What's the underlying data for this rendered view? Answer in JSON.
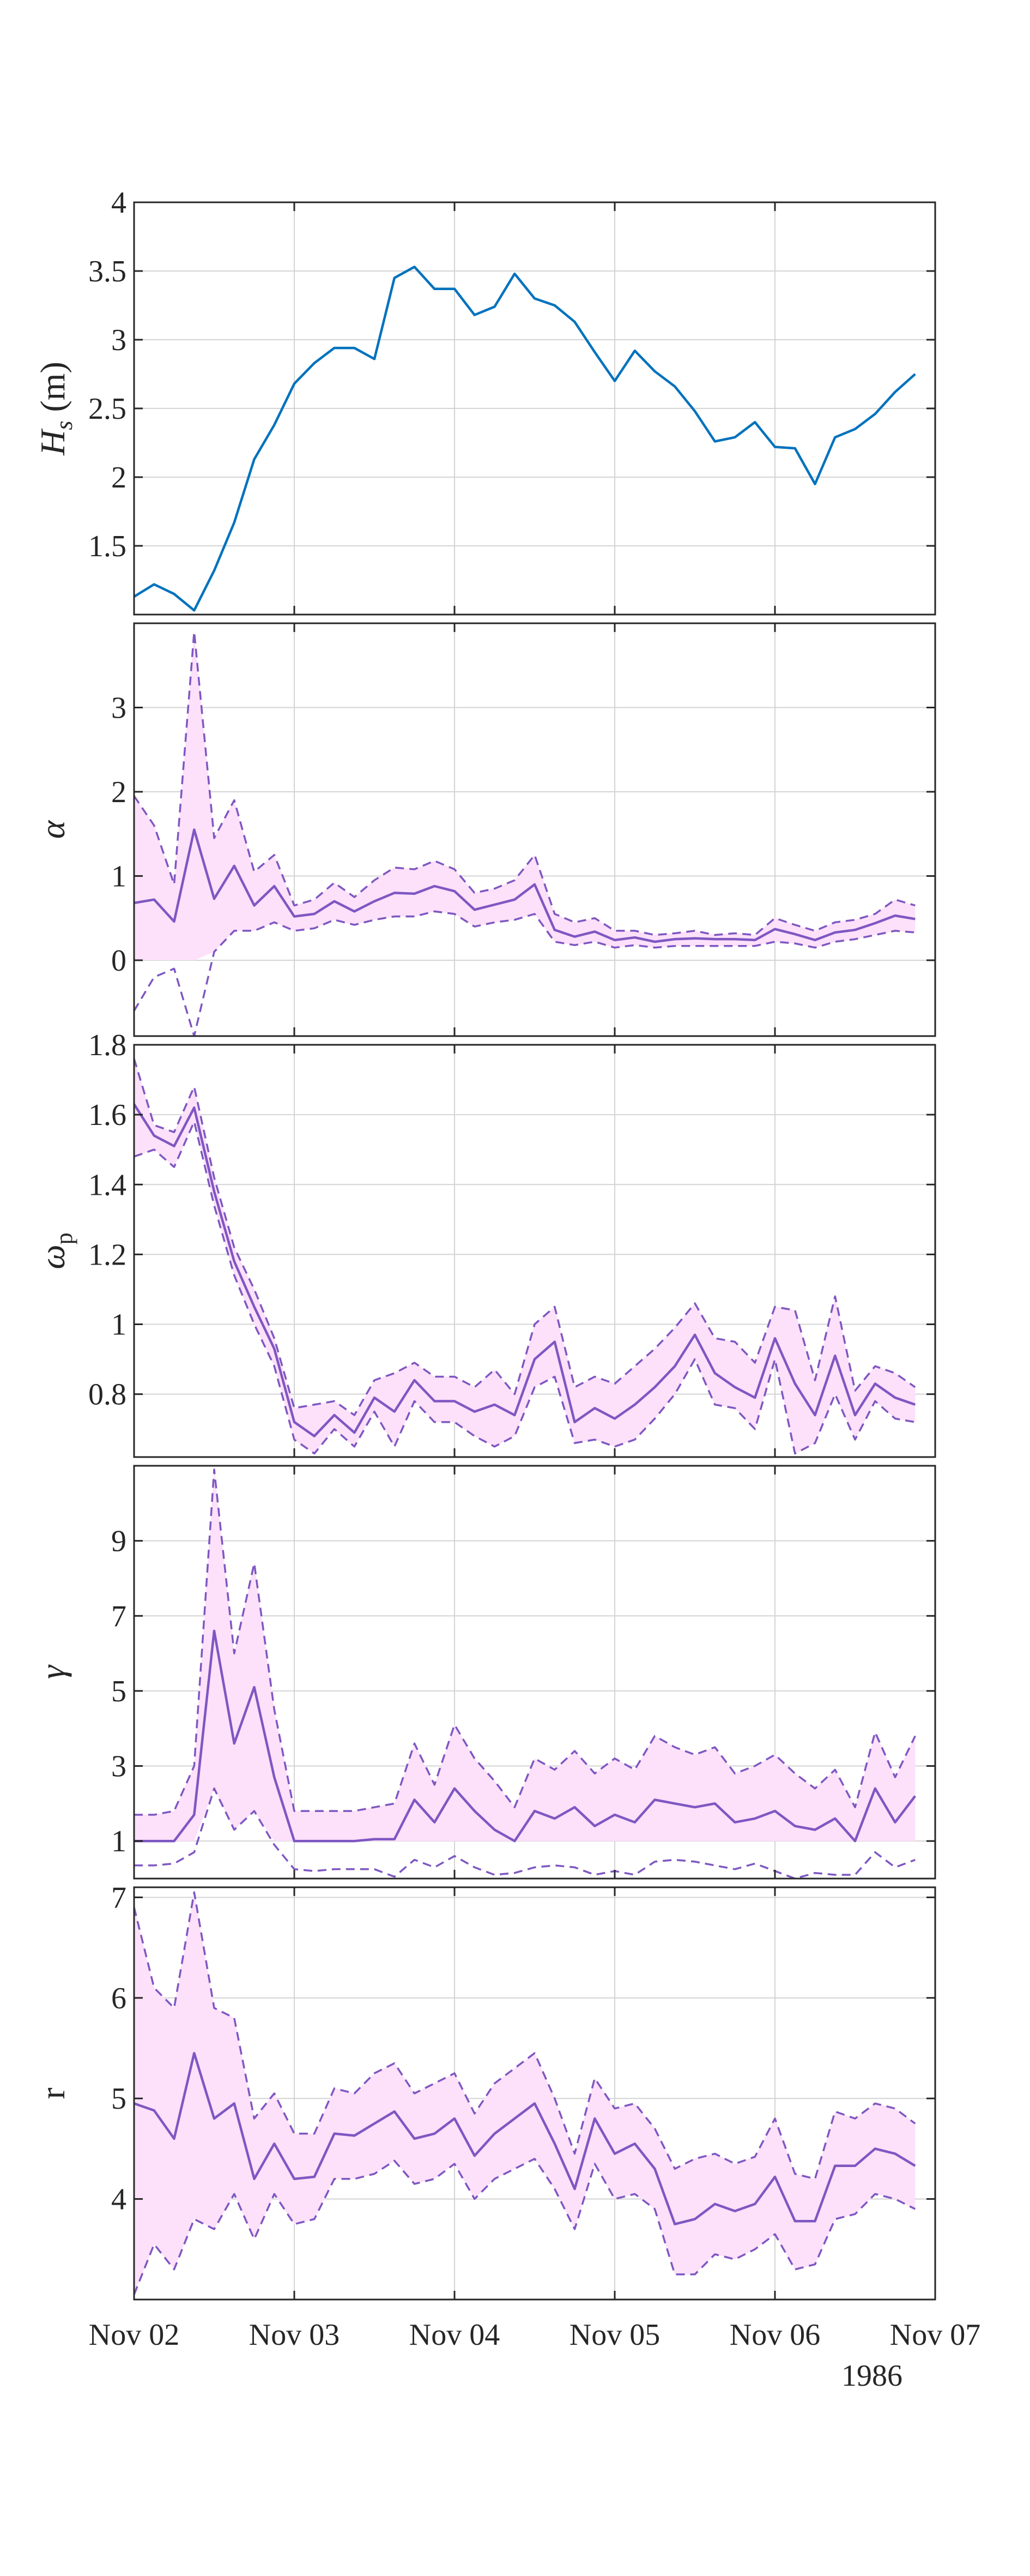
{
  "figure": {
    "year_label": "1986",
    "x_tick_labels": [
      "Nov 02",
      "Nov 03",
      "Nov 04",
      "Nov 05",
      "Nov 06",
      "Nov 07"
    ],
    "colors": {
      "hs_line": "#0072bd",
      "param_line": "#7e57c2",
      "band_fill": "#fde0fa",
      "axis": "#262626",
      "grid": "#d4d4d4"
    }
  },
  "chart_data": [
    {
      "type": "line",
      "id": "hs",
      "ylabel_main": "H",
      "ylabel_sub": "s",
      "ylabel_unit": " (m)",
      "x_unit": "days since Nov 02",
      "xlim": [
        0,
        5
      ],
      "ylim": [
        1.0,
        4.0
      ],
      "yticks": [
        1.5,
        2,
        2.5,
        3,
        3.5,
        4
      ],
      "ytick_labels": [
        "1.5",
        "2",
        "2.5",
        "3",
        "3.5",
        "4"
      ],
      "grid": true,
      "x": [
        0.0,
        0.125,
        0.25,
        0.375,
        0.5,
        0.625,
        0.75,
        0.875,
        1.0,
        1.125,
        1.25,
        1.375,
        1.5,
        1.625,
        1.75,
        1.875,
        2.0,
        2.125,
        2.25,
        2.375,
        2.5,
        2.625,
        2.75,
        2.875,
        3.0,
        3.125,
        3.25,
        3.375,
        3.5,
        3.625,
        3.75,
        3.875,
        4.0,
        4.125,
        4.25,
        4.375,
        4.5,
        4.625,
        4.75,
        4.875
      ],
      "series": [
        {
          "values": [
            1.13,
            1.22,
            1.15,
            1.03,
            1.32,
            1.67,
            2.13,
            2.38,
            2.68,
            2.83,
            2.94,
            2.94,
            2.86,
            3.45,
            3.53,
            3.37,
            3.37,
            3.18,
            3.24,
            3.48,
            3.3,
            3.25,
            3.13,
            2.91,
            2.7,
            2.92,
            2.77,
            2.66,
            2.48,
            2.26,
            2.29,
            2.4,
            2.22,
            2.21,
            1.95,
            2.29,
            2.35,
            2.46,
            2.62,
            2.75
          ]
        }
      ]
    },
    {
      "type": "area",
      "id": "alpha",
      "ylabel": "α",
      "x_unit": "days since Nov 02",
      "xlim": [
        0,
        5
      ],
      "ylim": [
        -0.9,
        4.0
      ],
      "band_floor": 0,
      "yticks": [
        0,
        1,
        2,
        3
      ],
      "ytick_labels": [
        "0",
        "1",
        "2",
        "3"
      ],
      "grid": true,
      "x": [
        0.0,
        0.125,
        0.25,
        0.375,
        0.5,
        0.625,
        0.75,
        0.875,
        1.0,
        1.125,
        1.25,
        1.375,
        1.5,
        1.625,
        1.75,
        1.875,
        2.0,
        2.125,
        2.25,
        2.375,
        2.5,
        2.625,
        2.75,
        2.875,
        3.0,
        3.125,
        3.25,
        3.375,
        3.5,
        3.625,
        3.75,
        3.875,
        4.0,
        4.125,
        4.25,
        4.375,
        4.5,
        4.625,
        4.75,
        4.875
      ],
      "series": [
        {
          "name": "estimate",
          "values": [
            0.68,
            0.72,
            0.46,
            1.55,
            0.73,
            1.12,
            0.65,
            0.88,
            0.52,
            0.55,
            0.7,
            0.58,
            0.7,
            0.8,
            0.79,
            0.88,
            0.82,
            0.6,
            0.66,
            0.72,
            0.9,
            0.36,
            0.28,
            0.34,
            0.24,
            0.27,
            0.22,
            0.25,
            0.26,
            0.25,
            0.25,
            0.24,
            0.37,
            0.31,
            0.24,
            0.33,
            0.36,
            0.44,
            0.53,
            0.49
          ]
        },
        {
          "name": "upper",
          "values": [
            1.95,
            1.6,
            0.9,
            3.9,
            1.45,
            1.9,
            1.05,
            1.25,
            0.65,
            0.72,
            0.92,
            0.75,
            0.95,
            1.1,
            1.08,
            1.18,
            1.08,
            0.8,
            0.85,
            0.95,
            1.25,
            0.55,
            0.45,
            0.5,
            0.35,
            0.35,
            0.3,
            0.32,
            0.35,
            0.3,
            0.32,
            0.3,
            0.5,
            0.42,
            0.35,
            0.45,
            0.48,
            0.55,
            0.72,
            0.65
          ]
        },
        {
          "name": "lower",
          "values": [
            -0.6,
            -0.2,
            -0.1,
            -0.9,
            0.1,
            0.35,
            0.35,
            0.45,
            0.35,
            0.38,
            0.48,
            0.42,
            0.48,
            0.52,
            0.52,
            0.58,
            0.55,
            0.4,
            0.45,
            0.48,
            0.55,
            0.22,
            0.18,
            0.22,
            0.15,
            0.18,
            0.15,
            0.17,
            0.17,
            0.17,
            0.17,
            0.17,
            0.22,
            0.2,
            0.15,
            0.22,
            0.25,
            0.3,
            0.35,
            0.33
          ]
        }
      ]
    },
    {
      "type": "area",
      "id": "omega",
      "ylabel_main": "ω",
      "ylabel_sub": "p",
      "x_unit": "days since Nov 02",
      "xlim": [
        0,
        5
      ],
      "ylim": [
        0.62,
        1.8
      ],
      "yticks": [
        0.8,
        1,
        1.2,
        1.4,
        1.6,
        1.8
      ],
      "ytick_labels": [
        "0.8",
        "1",
        "1.2",
        "1.4",
        "1.6",
        "1.8"
      ],
      "grid": true,
      "x": [
        0.0,
        0.125,
        0.25,
        0.375,
        0.5,
        0.625,
        0.75,
        0.875,
        1.0,
        1.125,
        1.25,
        1.375,
        1.5,
        1.625,
        1.75,
        1.875,
        2.0,
        2.125,
        2.25,
        2.375,
        2.5,
        2.625,
        2.75,
        2.875,
        3.0,
        3.125,
        3.25,
        3.375,
        3.5,
        3.625,
        3.75,
        3.875,
        4.0,
        4.125,
        4.25,
        4.375,
        4.5,
        4.625,
        4.75,
        4.875
      ],
      "series": [
        {
          "name": "estimate",
          "values": [
            1.63,
            1.54,
            1.51,
            1.62,
            1.38,
            1.18,
            1.05,
            0.93,
            0.72,
            0.68,
            0.74,
            0.69,
            0.79,
            0.75,
            0.84,
            0.78,
            0.78,
            0.75,
            0.77,
            0.74,
            0.9,
            0.95,
            0.72,
            0.76,
            0.73,
            0.77,
            0.82,
            0.88,
            0.97,
            0.86,
            0.82,
            0.79,
            0.96,
            0.83,
            0.74,
            0.91,
            0.74,
            0.83,
            0.79,
            0.77
          ]
        },
        {
          "name": "upper",
          "values": [
            1.76,
            1.57,
            1.55,
            1.68,
            1.42,
            1.22,
            1.1,
            0.96,
            0.76,
            0.77,
            0.78,
            0.74,
            0.84,
            0.86,
            0.89,
            0.85,
            0.85,
            0.82,
            0.87,
            0.8,
            1.0,
            1.05,
            0.82,
            0.85,
            0.83,
            0.88,
            0.93,
            0.99,
            1.06,
            0.96,
            0.95,
            0.89,
            1.05,
            1.04,
            0.84,
            1.08,
            0.81,
            0.88,
            0.86,
            0.82
          ]
        },
        {
          "name": "lower",
          "values": [
            1.48,
            1.5,
            1.45,
            1.58,
            1.34,
            1.14,
            1.0,
            0.88,
            0.67,
            0.63,
            0.7,
            0.65,
            0.75,
            0.65,
            0.78,
            0.72,
            0.72,
            0.68,
            0.65,
            0.68,
            0.82,
            0.85,
            0.66,
            0.67,
            0.65,
            0.67,
            0.73,
            0.8,
            0.9,
            0.77,
            0.76,
            0.7,
            0.9,
            0.63,
            0.66,
            0.8,
            0.67,
            0.78,
            0.73,
            0.72
          ]
        }
      ]
    },
    {
      "type": "area",
      "id": "gamma",
      "ylabel": "γ",
      "x_unit": "days since Nov 02",
      "xlim": [
        0,
        5
      ],
      "ylim": [
        0.0,
        11.0
      ],
      "band_floor": 1,
      "yticks": [
        1,
        3,
        5,
        7,
        9
      ],
      "ytick_labels": [
        "1",
        "3",
        "5",
        "7",
        "9"
      ],
      "grid": true,
      "x": [
        0.0,
        0.125,
        0.25,
        0.375,
        0.5,
        0.625,
        0.75,
        0.875,
        1.0,
        1.125,
        1.25,
        1.375,
        1.5,
        1.625,
        1.75,
        1.875,
        2.0,
        2.125,
        2.25,
        2.375,
        2.5,
        2.625,
        2.75,
        2.875,
        3.0,
        3.125,
        3.25,
        3.375,
        3.5,
        3.625,
        3.75,
        3.875,
        4.0,
        4.125,
        4.25,
        4.375,
        4.5,
        4.625,
        4.75,
        4.875
      ],
      "series": [
        {
          "name": "estimate",
          "values": [
            1.0,
            1.0,
            1.0,
            1.7,
            6.6,
            3.6,
            5.1,
            2.7,
            1.0,
            1.0,
            1.0,
            1.0,
            1.05,
            1.05,
            2.1,
            1.5,
            2.4,
            1.8,
            1.3,
            1.0,
            1.8,
            1.6,
            1.9,
            1.4,
            1.7,
            1.5,
            2.1,
            2.0,
            1.9,
            2.0,
            1.5,
            1.6,
            1.8,
            1.4,
            1.3,
            1.6,
            1.0,
            2.4,
            1.5,
            2.2
          ]
        },
        {
          "name": "upper",
          "values": [
            1.7,
            1.7,
            1.8,
            3.0,
            10.9,
            6.0,
            8.4,
            4.5,
            1.8,
            1.8,
            1.8,
            1.8,
            1.9,
            2.0,
            3.6,
            2.5,
            4.1,
            3.2,
            2.6,
            1.9,
            3.2,
            2.9,
            3.4,
            2.8,
            3.2,
            2.9,
            3.8,
            3.5,
            3.3,
            3.5,
            2.8,
            3.0,
            3.3,
            2.8,
            2.4,
            2.9,
            1.9,
            3.9,
            2.7,
            3.8
          ]
        },
        {
          "name": "lower",
          "values": [
            0.35,
            0.35,
            0.4,
            0.7,
            2.4,
            1.3,
            1.8,
            0.9,
            0.25,
            0.2,
            0.25,
            0.25,
            0.25,
            0.05,
            0.5,
            0.3,
            0.6,
            0.3,
            0.1,
            0.15,
            0.3,
            0.35,
            0.3,
            0.1,
            0.2,
            0.1,
            0.45,
            0.5,
            0.45,
            0.35,
            0.25,
            0.4,
            0.2,
            0.0,
            0.15,
            0.1,
            0.1,
            0.7,
            0.3,
            0.5
          ]
        }
      ]
    },
    {
      "type": "area",
      "id": "r",
      "ylabel": "r",
      "x_unit": "days since Nov 02",
      "xlim": [
        0,
        5
      ],
      "ylim": [
        3.0,
        7.1
      ],
      "yticks": [
        4,
        5,
        6,
        7
      ],
      "ytick_labels": [
        "4",
        "5",
        "6",
        "7"
      ],
      "grid": true,
      "x": [
        0.0,
        0.125,
        0.25,
        0.375,
        0.5,
        0.625,
        0.75,
        0.875,
        1.0,
        1.125,
        1.25,
        1.375,
        1.5,
        1.625,
        1.75,
        1.875,
        2.0,
        2.125,
        2.25,
        2.375,
        2.5,
        2.625,
        2.75,
        2.875,
        3.0,
        3.125,
        3.25,
        3.375,
        3.5,
        3.625,
        3.75,
        3.875,
        4.0,
        4.125,
        4.25,
        4.375,
        4.5,
        4.625,
        4.75,
        4.875
      ],
      "series": [
        {
          "name": "estimate",
          "values": [
            4.95,
            4.88,
            4.6,
            5.45,
            4.8,
            4.95,
            4.2,
            4.55,
            4.2,
            4.22,
            4.65,
            4.63,
            4.75,
            4.87,
            4.6,
            4.65,
            4.8,
            4.43,
            4.65,
            4.8,
            4.95,
            4.55,
            4.1,
            4.8,
            4.45,
            4.55,
            4.3,
            3.75,
            3.8,
            3.95,
            3.88,
            3.95,
            4.22,
            3.78,
            3.78,
            4.33,
            4.33,
            4.5,
            4.45,
            4.33
          ]
        },
        {
          "name": "upper",
          "values": [
            6.9,
            6.1,
            5.9,
            7.05,
            5.9,
            5.8,
            4.8,
            5.05,
            4.65,
            4.65,
            5.1,
            5.05,
            5.25,
            5.35,
            5.05,
            5.15,
            5.25,
            4.85,
            5.15,
            5.3,
            5.45,
            5.0,
            4.45,
            5.2,
            4.9,
            4.95,
            4.7,
            4.3,
            4.4,
            4.45,
            4.35,
            4.42,
            4.8,
            4.25,
            4.2,
            4.87,
            4.8,
            4.95,
            4.9,
            4.75
          ]
        },
        {
          "name": "lower",
          "values": [
            3.05,
            3.55,
            3.3,
            3.8,
            3.7,
            4.05,
            3.6,
            4.05,
            3.75,
            3.8,
            4.2,
            4.2,
            4.25,
            4.38,
            4.15,
            4.2,
            4.35,
            4.0,
            4.2,
            4.3,
            4.4,
            4.1,
            3.7,
            4.35,
            4.0,
            4.05,
            3.9,
            3.25,
            3.25,
            3.45,
            3.4,
            3.5,
            3.65,
            3.3,
            3.35,
            3.8,
            3.85,
            4.05,
            4.0,
            3.9
          ]
        }
      ]
    }
  ]
}
